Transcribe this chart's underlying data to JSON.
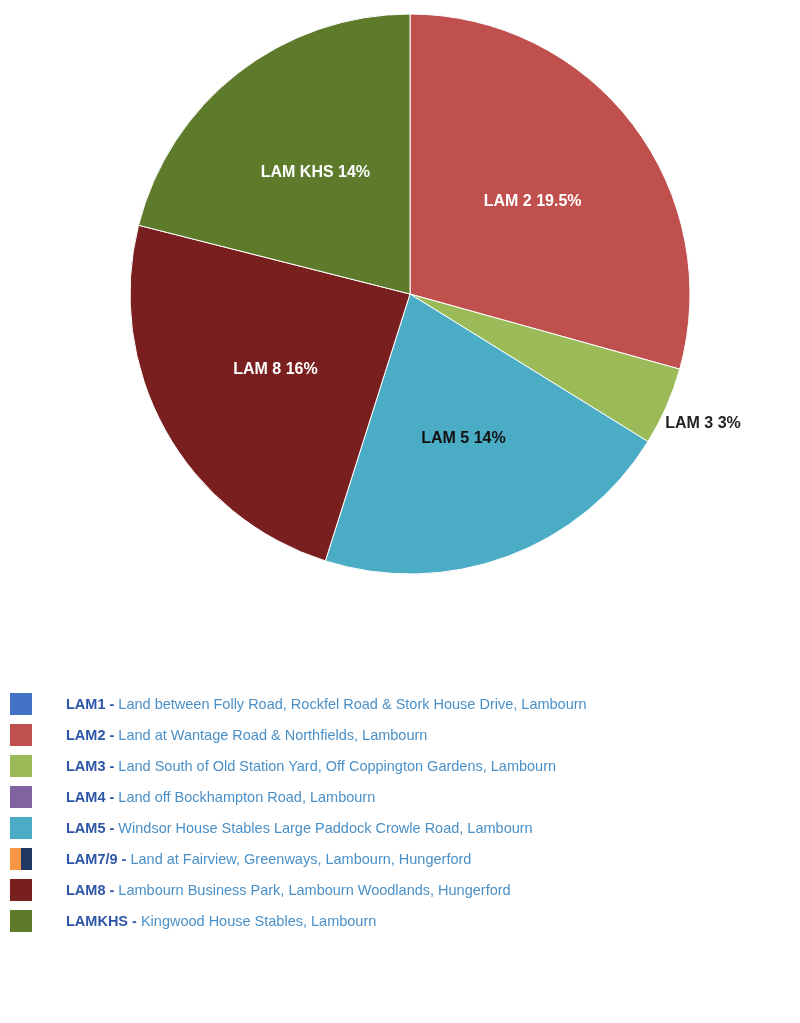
{
  "chart_data": {
    "type": "pie",
    "categories": [
      "LAM 2",
      "LAM 3",
      "LAM 5",
      "LAM 8",
      "LAM KHS"
    ],
    "values": [
      19.5,
      3,
      14,
      16,
      14
    ],
    "value_labels": [
      "19.5%",
      "3%",
      "14%",
      "16%",
      "14%"
    ],
    "colors": [
      "#c0504d",
      "#9bbb59",
      "#4bacc6",
      "#7a1f1f",
      "#5e7b2b"
    ],
    "annotations": [
      "LAM1 - Land between Folly Road, Rockfel Road & Stork House Drive, Lambourn",
      "LAM2 - Land at Wantage Road & Northfields, Lambourn",
      "LAM3 - Land South of Old Station Yard, Off Coppington Gardens, Lambourn",
      "LAM4 - Land off Bockhampton Road, Lambourn",
      "LAM5 - Windsor House Stables Large Paddock Crowle Road, Lambourn",
      "LAM7/9 - Land at Fairview, Greenways, Lambourn, Hungerford",
      "LAM8 - Lambourn Business Park, Lambourn Woodlands, Hungerford",
      "LAMKHS - Kingwood House Stables, Lambourn"
    ]
  }
}
